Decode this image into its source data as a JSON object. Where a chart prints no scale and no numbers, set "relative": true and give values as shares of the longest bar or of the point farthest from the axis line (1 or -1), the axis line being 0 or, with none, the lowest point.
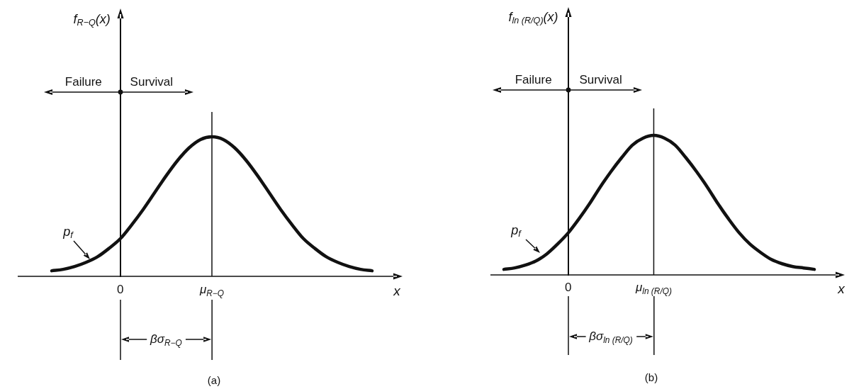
{
  "chart_data": [
    {
      "type": "line",
      "title": "(a)",
      "xlabel": "x",
      "ylabel": "f$_{R−Q}$(x)",
      "relative": true,
      "marker": "none",
      "line_style": "solid",
      "color": "#111111",
      "categories": [
        null,
        null,
        null,
        null,
        null,
        null,
        "0",
        null,
        null,
        null,
        null,
        null,
        null,
        null,
        "μ$_{R−Q}$",
        null,
        null,
        null,
        null,
        null,
        null,
        null,
        null,
        null,
        null,
        null,
        null,
        null,
        null
      ],
      "values": [
        0.04,
        0.05,
        0.07,
        0.1,
        0.14,
        0.2,
        0.27,
        0.37,
        0.48,
        0.6,
        0.72,
        0.83,
        0.92,
        0.98,
        1,
        0.98,
        0.92,
        0.83,
        0.72,
        0.6,
        0.48,
        0.37,
        0.27,
        0.2,
        0.14,
        0.1,
        0.07,
        0.05,
        0.04
      ],
      "ref_lines": [
        {
          "axis": "x",
          "value": "μ$_{R−Q}$"
        }
      ],
      "annotations": [
        "Failure",
        "Survival",
        "p$_{f}$",
        "βσ$_{R−Q}$"
      ]
    },
    {
      "type": "line",
      "title": "(b)",
      "xlabel": "x",
      "ylabel": "f$_{ln (R/Q)}$(x)",
      "relative": true,
      "marker": "none",
      "line_style": "solid",
      "color": "#111111",
      "categories": [
        null,
        null,
        null,
        null,
        null,
        null,
        "0",
        null,
        null,
        null,
        null,
        null,
        null,
        null,
        "μ$_{ln (R/Q)}$",
        null,
        null,
        null,
        null,
        null,
        null,
        null,
        null,
        null,
        null,
        null,
        null,
        null,
        null,
        null
      ],
      "values": [
        0.04,
        0.05,
        0.07,
        0.1,
        0.15,
        0.22,
        0.3,
        0.4,
        0.51,
        0.63,
        0.74,
        0.84,
        0.93,
        0.98,
        1,
        0.98,
        0.93,
        0.84,
        0.74,
        0.63,
        0.51,
        0.4,
        0.3,
        0.22,
        0.16,
        0.11,
        0.08,
        0.06,
        0.05,
        0.04
      ],
      "ref_lines": [
        {
          "axis": "x",
          "value": "μ$_{ln (R/Q)}$"
        }
      ],
      "annotations": [
        "Failure",
        "Survival",
        "p$_{f}$",
        "βσ$_{ln (R/Q)}$"
      ]
    }
  ]
}
